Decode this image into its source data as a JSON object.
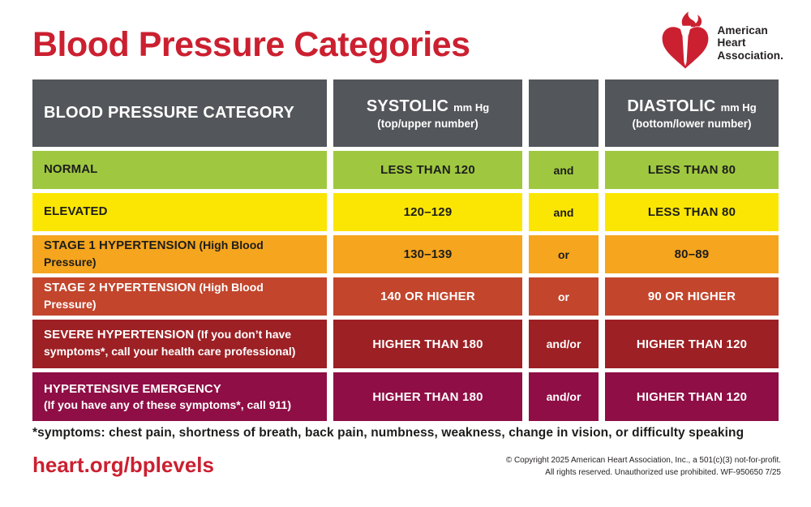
{
  "page": {
    "title": "Blood Pressure Categories",
    "footnote": "*symptoms: chest pain, shortness of breath, back pain, numbness, weakness, change in vision, or difficulty speaking",
    "link": "heart.org/bplevels",
    "copyright_line1": "© Copyright 2025 American Heart Association, Inc., a 501(c)(3) not-for-profit.",
    "copyright_line2": "All rights reserved. Unauthorized use prohibited.  WF-950650  7/25",
    "brand_red": "#cb2030",
    "header_gray": "#53565a"
  },
  "logo": {
    "icon": "aha-heart-torch-icon",
    "line1": "American",
    "line2": "Heart",
    "line3": "Association."
  },
  "table": {
    "headers": {
      "category": "BLOOD PRESSURE CATEGORY",
      "systolic_main": "SYSTOLIC",
      "systolic_unit": "mm Hg",
      "systolic_sub": "(top/upper number)",
      "connector": "",
      "diastolic_main": "DIASTOLIC",
      "diastolic_unit": "mm Hg",
      "diastolic_sub": "(bottom/lower number)"
    },
    "rows": [
      {
        "id": "normal",
        "category": "NORMAL",
        "note": "",
        "note_break": false,
        "systolic": "LESS THAN 120",
        "connector": "and",
        "diastolic": "LESS THAN 80",
        "color": "#9fc840",
        "text_color": "#1d1d1b"
      },
      {
        "id": "elevated",
        "category": "ELEVATED",
        "note": "",
        "note_break": false,
        "systolic": "120–129",
        "connector": "and",
        "diastolic": "LESS THAN 80",
        "color": "#fbe603",
        "text_color": "#1d1d1b"
      },
      {
        "id": "stage-1-hypertension",
        "category": "STAGE 1 HYPERTENSION",
        "note": "(High Blood Pressure)",
        "note_break": false,
        "systolic": "130–139",
        "connector": "or",
        "diastolic": "80–89",
        "color": "#f5a51e",
        "text_color": "#1d1d1b"
      },
      {
        "id": "stage-2-hypertension",
        "category": "STAGE 2 HYPERTENSION",
        "note": "(High Blood Pressure)",
        "note_break": false,
        "systolic": "140 OR HIGHER",
        "connector": "or",
        "diastolic": "90 OR HIGHER",
        "color": "#c2452c",
        "text_color": "#ffffff"
      },
      {
        "id": "severe-hypertension",
        "category": "SEVERE HYPERTENSION",
        "note": "(If you don’t have symptoms*, call your health care professional)",
        "note_break": false,
        "systolic": "HIGHER THAN 180",
        "connector": "and/or",
        "diastolic": "HIGHER THAN 120",
        "color": "#9c2024",
        "text_color": "#ffffff"
      },
      {
        "id": "hypertensive-emergency",
        "category": "HYPERTENSIVE EMERGENCY",
        "note": "(If you have any of these symptoms*, call 911)",
        "note_break": true,
        "systolic": "HIGHER THAN 180",
        "connector": "and/or",
        "diastolic": "HIGHER THAN 120",
        "color": "#8f0e45",
        "text_color": "#ffffff"
      }
    ]
  }
}
